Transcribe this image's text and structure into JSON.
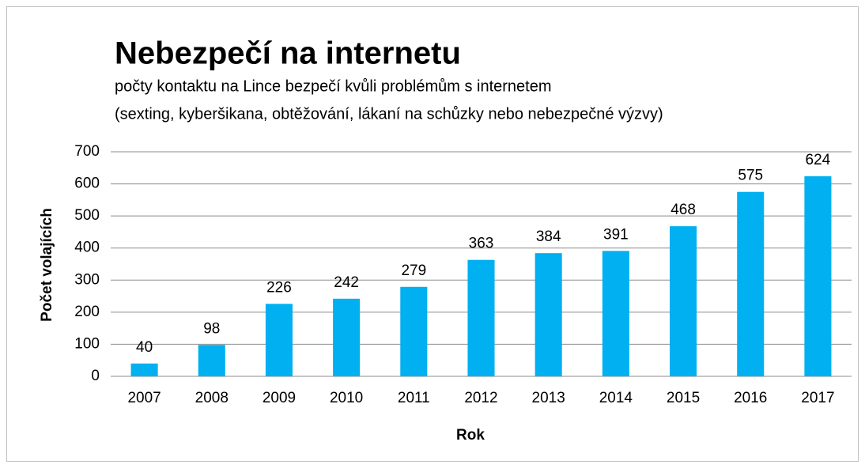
{
  "chart_data": {
    "type": "bar",
    "title": "Nebezpečí na internetu",
    "subtitle": [
      "počty kontaktu na Lince bezpečí kvůli problémům s internetem",
      "(sexting, kyberšikana, obtěžování, lákaní na schůzky nebo nebezpečné výzvy)"
    ],
    "x_label": "Rok",
    "y_label": "Počet volajících",
    "categories": [
      "2007",
      "2008",
      "2009",
      "2010",
      "2011",
      "2012",
      "2013",
      "2014",
      "2015",
      "2016",
      "2017"
    ],
    "values": [
      40,
      98,
      226,
      242,
      279,
      363,
      384,
      391,
      468,
      575,
      624
    ],
    "color": "#00b0f0",
    "ylim": [
      0,
      700
    ],
    "yticks": [
      0,
      100,
      200,
      300,
      400,
      500,
      600,
      700
    ],
    "grid": true
  }
}
